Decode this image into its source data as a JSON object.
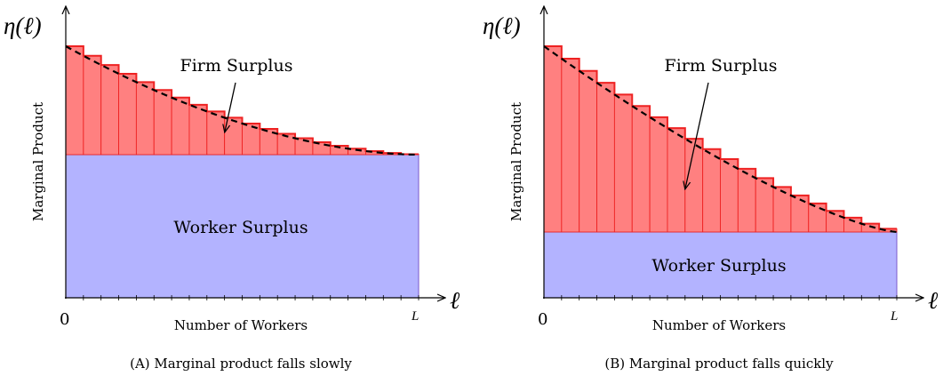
{
  "panels": [
    {
      "id": "A",
      "y_axis_symbol": "η(ℓ)",
      "x_axis_symbol": "ℓ",
      "origin_label": "0",
      "end_label": "L",
      "ylabel": "Marginal Product",
      "xlabel": "Number of Workers",
      "firm_label": "Firm Surplus",
      "worker_label": "Worker Surplus",
      "caption": "(A) Marginal product falls slowly"
    },
    {
      "id": "B",
      "y_axis_symbol": "η(ℓ)",
      "x_axis_symbol": "ℓ",
      "origin_label": "0",
      "end_label": "L",
      "ylabel": "Marginal Product",
      "xlabel": "Number of Workers",
      "firm_label": "Firm Surplus",
      "worker_label": "Worker Surplus",
      "caption": "(B) Marginal product falls quickly"
    }
  ],
  "colors": {
    "firm_fill": "#ff8080",
    "firm_edge": "#ee2222",
    "worker_fill": "#b3b3ff",
    "worker_edge": "#7a5acc",
    "curve": "#000000",
    "axis": "#000000"
  }
}
